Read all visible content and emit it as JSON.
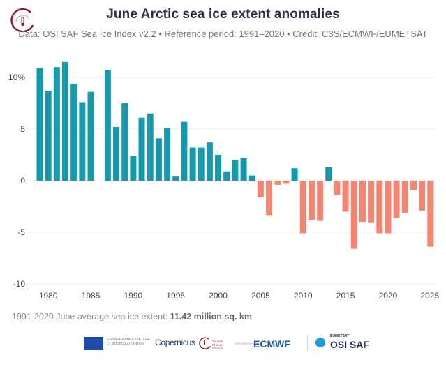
{
  "header": {
    "title": "June Arctic sea ice extent anomalies",
    "subtitle": "Data: OSI SAF Sea Ice Index v2.2 • Reference period: 1991–2020 • Credit: C3S/ECMWF/EUMETSAT"
  },
  "footnote": {
    "prefix": "1991-2020 June average sea ice extent: ",
    "value": "11.42 million sq. km"
  },
  "logos": {
    "eu_text": "PROGRAMME OF THE EUROPEAN UNION",
    "copernicus": "Copernicus",
    "c3s_text": "Climate Change Service",
    "implemented_by": "IMPLEMENTED BY",
    "ecmwf": "ECMWF",
    "eumetsat": "EUMETSAT",
    "osisaf": "OSI SAF"
  },
  "colors": {
    "positive": "#1499ad",
    "negative": "#f58471",
    "grid": "#ececec",
    "brand": "#8c1c2c"
  },
  "chart_data": {
    "type": "bar",
    "title": "June Arctic sea ice extent anomalies",
    "xlabel": "",
    "ylabel": "",
    "y_tick_labels": [
      "10%",
      "5",
      "0",
      "-5",
      "-10"
    ],
    "y_ticks": [
      10,
      5,
      0,
      -5,
      -10
    ],
    "x_tick_labels": [
      "1980",
      "1985",
      "1990",
      "1995",
      "2000",
      "2005",
      "2010",
      "2015",
      "2020",
      "2025"
    ],
    "x_ticks": [
      1980,
      1985,
      1990,
      1995,
      2000,
      2005,
      2010,
      2015,
      2020,
      2025
    ],
    "ylim": [
      -10,
      12
    ],
    "xlim": [
      1978.5,
      2025.5
    ],
    "grid": true,
    "units": "%",
    "x": [
      1979,
      1980,
      1981,
      1982,
      1983,
      1984,
      1985,
      1986,
      1987,
      1988,
      1989,
      1990,
      1991,
      1992,
      1993,
      1994,
      1995,
      1996,
      1997,
      1998,
      1999,
      2000,
      2001,
      2002,
      2003,
      2004,
      2005,
      2006,
      2007,
      2008,
      2009,
      2010,
      2011,
      2012,
      2013,
      2014,
      2015,
      2016,
      2017,
      2018,
      2019,
      2020,
      2021,
      2022,
      2023,
      2024,
      2025
    ],
    "values": [
      10.9,
      8.7,
      11.0,
      11.5,
      9.4,
      7.6,
      8.6,
      null,
      10.7,
      5.2,
      7.5,
      2.4,
      6.1,
      6.5,
      4.1,
      5.1,
      0.4,
      5.7,
      3.2,
      3.2,
      3.7,
      2.5,
      0.9,
      2.0,
      2.2,
      0.5,
      -1.6,
      -3.4,
      -0.4,
      -0.3,
      1.2,
      -5.1,
      -3.8,
      -3.9,
      1.3,
      -1.4,
      -3.0,
      -6.6,
      -4.0,
      -4.1,
      -5.1,
      -5.1,
      -3.6,
      -3.1,
      -0.9,
      -2.9,
      -6.4
    ]
  }
}
